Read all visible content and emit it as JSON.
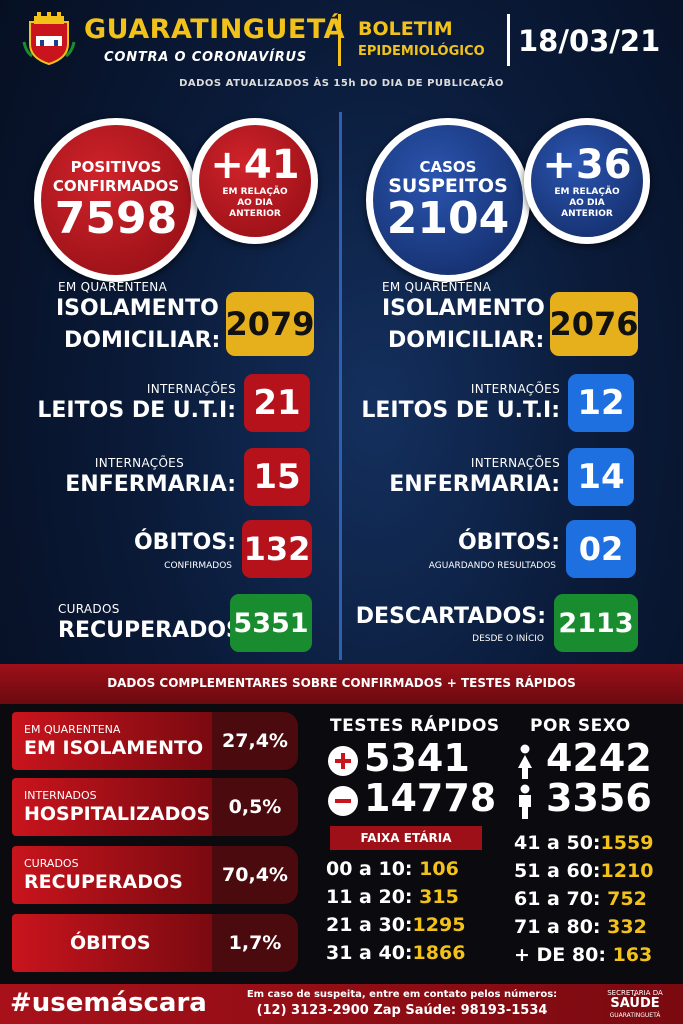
{
  "header": {
    "city": "GUARATINGUETÁ",
    "city_subtitle": "CONTRA O CORONAVÍRUS",
    "bulletin_title": "BOLETIM",
    "bulletin_subtitle": "EPIDEMIOLÓGICO",
    "date": "18/03/21",
    "updated_note": "DADOS ATUALIZADOS ÀS 15h DO DIA DE PUBLICAÇÃO"
  },
  "confirmed": {
    "label_line1": "POSITIVOS",
    "label_line2": "CONFIRMADOS",
    "value": "7598",
    "delta": "+41",
    "delta_note_line1": "EM RELAÇÃO",
    "delta_note_line2": "AO DIA",
    "delta_note_line3": "ANTERIOR",
    "quarantine_small": "EM QUARENTENA",
    "quarantine_line1": "ISOLAMENTO",
    "quarantine_line2": "DOMICILIAR:",
    "quarantine_value": "2079",
    "icu_small": "INTERNAÇÕES",
    "icu_label": "LEITOS DE U.T.I:",
    "icu_value": "21",
    "ward_small": "INTERNAÇÕES",
    "ward_label": "ENFERMARIA:",
    "ward_value": "15",
    "deaths_label": "ÓBITOS:",
    "deaths_note": "CONFIRMADOS",
    "deaths_value": "132",
    "cured_small": "CURADOS",
    "cured_label": "RECUPERADOS:",
    "cured_value": "5351"
  },
  "suspected": {
    "label_line1": "CASOS",
    "label_line2": "SUSPEITOS",
    "value": "2104",
    "delta": "+36",
    "delta_note_line1": "EM RELAÇÃO",
    "delta_note_line2": "AO DIA",
    "delta_note_line3": "ANTERIOR",
    "quarantine_small": "EM QUARENTENA",
    "quarantine_line1": "ISOLAMENTO",
    "quarantine_line2": "DOMICILIAR:",
    "quarantine_value": "2076",
    "icu_small": "INTERNAÇÕES",
    "icu_label": "LEITOS DE U.T.I:",
    "icu_value": "12",
    "ward_small": "INTERNAÇÕES",
    "ward_label": "ENFERMARIA:",
    "ward_value": "14",
    "deaths_label": "ÓBITOS:",
    "deaths_note": "AGUARDANDO RESULTADOS",
    "deaths_value": "02",
    "discarded_label": "DESCARTADOS:",
    "discarded_note": "DESDE O INÍCIO",
    "discarded_value": "2113"
  },
  "complementary": {
    "band_title": "DADOS COMPLEMENTARES SOBRE CONFIRMADOS + TESTES RÁPIDOS",
    "isolation_small": "EM QUARENTENA",
    "isolation_big": "EM ISOLAMENTO",
    "isolation_pct": "27,4%",
    "hospital_small": "INTERNADOS",
    "hospital_big": "HOSPITALIZADOS",
    "hospital_pct": "0,5%",
    "cured_small": "CURADOS",
    "cured_big": "RECUPERADOS",
    "cured_pct": "70,4%",
    "deaths_big": "ÓBITOS",
    "deaths_pct": "1,7%"
  },
  "rapid_tests": {
    "title": "TESTES RÁPIDOS",
    "positive": "5341",
    "negative": "14778"
  },
  "by_sex": {
    "title": "POR SEXO",
    "female": "4242",
    "male": "3356"
  },
  "age_groups": {
    "title": "FAIXA ETÁRIA",
    "rows": [
      {
        "label": "00 a 10:",
        "value": "106"
      },
      {
        "label": "11 a 20:",
        "value": "315"
      },
      {
        "label": "21 a 30:",
        "value": "1295"
      },
      {
        "label": "31 a 40:",
        "value": "1866"
      },
      {
        "label": "41 a 50:",
        "value": "1559"
      },
      {
        "label": "51 a 60:",
        "value": "1210"
      },
      {
        "label": "61 a 70:",
        "value": "752"
      },
      {
        "label": "71 a 80:",
        "value": "332"
      },
      {
        "label": "+ DE 80:",
        "value": "163"
      }
    ]
  },
  "footer": {
    "hashtag": "#usemáscara",
    "contact_line1": "Em caso de suspeita, entre em contato pelos números:",
    "contact_line2": "(12) 3123-2900 Zap Saúde: 98193-1534",
    "dept_line1": "SECRETARIA DA",
    "dept_line2": "SAÚDE",
    "dept_line3": "GUARATINGUETÁ"
  },
  "colors": {
    "accent_yellow": "#f2c21a",
    "confirmed_red": "#b5121b",
    "suspected_blue": "#1e6fe0",
    "cured_green": "#1a8c30"
  }
}
